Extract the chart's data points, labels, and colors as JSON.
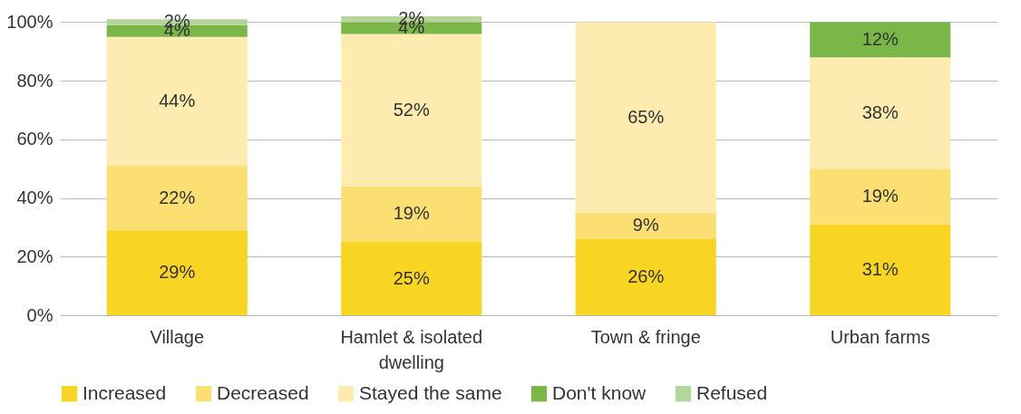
{
  "chart_data": {
    "type": "bar",
    "stacked": true,
    "categories": [
      "Village",
      "Hamlet & isolated dwelling",
      "Town & fringe",
      "Urban farms"
    ],
    "series": [
      {
        "name": "Increased",
        "color": "#f9d523",
        "values": [
          29,
          25,
          26,
          31
        ],
        "value_labels": [
          "29%",
          "25%",
          "26%",
          "31%"
        ]
      },
      {
        "name": "Decreased",
        "color": "#fbdf72",
        "values": [
          22,
          19,
          9,
          19
        ],
        "value_labels": [
          "22%",
          "19%",
          "9%",
          "19%"
        ]
      },
      {
        "name": "Stayed the same",
        "color": "#fdebb0",
        "values": [
          44,
          52,
          65,
          38
        ],
        "value_labels": [
          "44%",
          "52%",
          "65%",
          "38%"
        ]
      },
      {
        "name": "Don't know",
        "color": "#7ab648",
        "values": [
          4,
          4,
          null,
          12
        ],
        "value_labels": [
          "4%",
          "4%",
          null,
          "12%"
        ]
      },
      {
        "name": "Refused",
        "color": "#b5d69a",
        "values": [
          2,
          2,
          null,
          null
        ],
        "value_labels": [
          "2%",
          "2%",
          null,
          null
        ]
      }
    ],
    "ylim": [
      0,
      102
    ],
    "yticks": [
      {
        "value": 0,
        "label": "0%"
      },
      {
        "value": 20,
        "label": "20%"
      },
      {
        "value": 40,
        "label": "40%"
      },
      {
        "value": 60,
        "label": "60%"
      },
      {
        "value": 80,
        "label": "80%"
      },
      {
        "value": 100,
        "label": "100%"
      }
    ],
    "grid": "y",
    "legend": "bottom"
  }
}
